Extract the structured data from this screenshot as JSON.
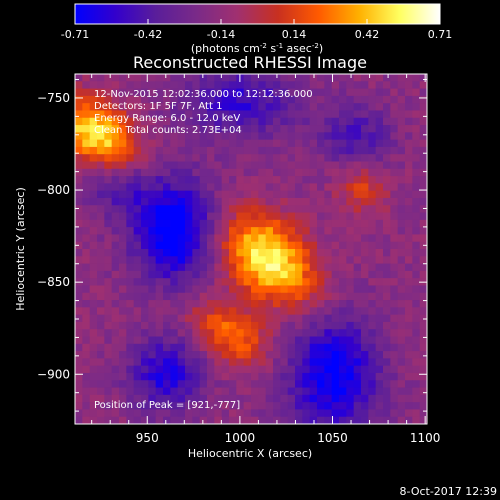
{
  "chart_data": {
    "type": "heatmap",
    "title": "Reconstructed RHESSI Image",
    "xlabel": "Heliocentric X (arcsec)",
    "ylabel": "Heliocentric Y (arcsec)",
    "xlim": [
      911,
      1101
    ],
    "ylim": [
      -927,
      -737
    ],
    "x_ticks": [
      950,
      1000,
      1050,
      1100
    ],
    "y_ticks": [
      -900,
      -850,
      -800,
      -750
    ],
    "colorbar": {
      "min": -0.71,
      "max": 0.71,
      "ticks": [
        "-0.71",
        "-0.42",
        "-0.14",
        "0.14",
        "0.42",
        "0.71"
      ],
      "label_main": "(photons cm",
      "label_exp1": "-2",
      "label_mid1": " s",
      "label_exp2": "-1",
      "label_mid2": " asec",
      "label_exp3": "-2",
      "label_end": ")",
      "colormap": [
        "#0000ff",
        "#3300cc",
        "#5a1e9a",
        "#7a2a88",
        "#a03070",
        "#c83020",
        "#ff5a00",
        "#ffb000",
        "#ffff60",
        "#ffffff"
      ]
    },
    "peak_position": [
      921,
      -777
    ],
    "sources": [
      {
        "x": 1015,
        "y": -840,
        "sx": 22,
        "sy": 13,
        "angle": -38,
        "amp": 0.69
      },
      {
        "x": 1018,
        "y": -824,
        "sx": 16,
        "sy": 10,
        "angle": -38,
        "amp": 0.14
      },
      {
        "x": 922,
        "y": -769,
        "sx": 17,
        "sy": 11,
        "angle": -30,
        "amp": 0.69
      },
      {
        "x": 995,
        "y": -878,
        "sx": 17,
        "sy": 10,
        "angle": -35,
        "amp": 0.42
      },
      {
        "x": 1066,
        "y": -800,
        "sx": 9,
        "sy": 9,
        "angle": 0,
        "amp": 0.28
      },
      {
        "x": 965,
        "y": -822,
        "sx": 16,
        "sy": 20,
        "angle": 0,
        "amp": -0.65
      },
      {
        "x": 1050,
        "y": -900,
        "sx": 18,
        "sy": 24,
        "angle": 0,
        "amp": -0.55
      },
      {
        "x": 960,
        "y": -900,
        "sx": 14,
        "sy": 14,
        "angle": 0,
        "amp": -0.45
      },
      {
        "x": 1000,
        "y": -752,
        "sx": 22,
        "sy": 14,
        "angle": 0,
        "amp": -0.38
      },
      {
        "x": 1062,
        "y": -770,
        "sx": 14,
        "sy": 12,
        "angle": 0,
        "amp": -0.3
      },
      {
        "x": 935,
        "y": -800,
        "sx": 12,
        "sy": 10,
        "angle": 0,
        "amp": -0.25
      }
    ],
    "base_level": -0.16
  },
  "annotations": {
    "line1": "12-Nov-2015 12:02:36.000 to 12:12:36.000",
    "line2": "Detectors: 1F 5F 7F, Att 1",
    "line3": "Energy Range: 6.0 - 12.0 keV",
    "line4": "Clean    Total counts: 2.73E+04",
    "peak": "Position of Peak = [921,-777]"
  },
  "footer_date": "8-Oct-2017 12:39"
}
